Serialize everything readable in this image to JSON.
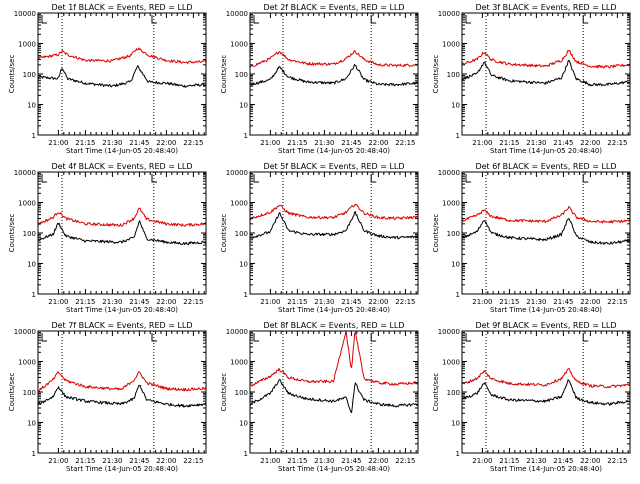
{
  "x_tick_labels": [
    "21:00",
    "21:15",
    "21:30",
    "21:45",
    "22:00",
    "22:15"
  ],
  "y_tick_labels": [
    "1",
    "10",
    "100",
    "1000",
    "10000"
  ],
  "ylabel": "Counts/sec",
  "xlabel": "Start Time (14-Jun-05 20:48:40)",
  "colors": {
    "events": "#000000",
    "lld": "#dd0000",
    "frame": "#000000"
  },
  "chart_data": [
    {
      "type": "line",
      "title": "Det 1f BLACK = Events, RED = LLD",
      "yscale": "log",
      "ylim": [
        1,
        10000
      ],
      "xlim": [
        "20:48:40",
        "22:22:00"
      ],
      "dotted_x": [
        "21:02",
        "21:53"
      ],
      "flag_x": "21:52",
      "series": [
        {
          "name": "Events",
          "x": [
            "20:49",
            "21:00",
            "21:02",
            "21:05",
            "21:15",
            "21:30",
            "21:40",
            "21:44",
            "21:50",
            "22:00",
            "22:10",
            "22:21"
          ],
          "y": [
            80,
            70,
            170,
            70,
            50,
            40,
            55,
            180,
            55,
            50,
            40,
            45
          ]
        },
        {
          "name": "LLD",
          "x": [
            "20:49",
            "21:00",
            "21:02",
            "21:05",
            "21:15",
            "21:30",
            "21:40",
            "21:44",
            "21:50",
            "22:00",
            "22:10",
            "22:21"
          ],
          "y": [
            330,
            430,
            560,
            430,
            280,
            270,
            400,
            700,
            420,
            280,
            240,
            250
          ]
        }
      ]
    },
    {
      "type": "line",
      "title": "Det 2f BLACK = Events, RED = LLD",
      "yscale": "log",
      "ylim": [
        1,
        10000
      ],
      "xlim": [
        "20:48:40",
        "22:22:00"
      ],
      "dotted_x": [
        "21:07",
        "21:56"
      ],
      "flag_x": "21:56",
      "series": [
        {
          "name": "Events",
          "x": [
            "20:49",
            "21:00",
            "21:05",
            "21:10",
            "21:20",
            "21:35",
            "21:42",
            "21:47",
            "21:52",
            "22:00",
            "22:10",
            "22:21"
          ],
          "y": [
            45,
            65,
            170,
            80,
            55,
            50,
            70,
            200,
            65,
            45,
            45,
            50
          ]
        },
        {
          "name": "LLD",
          "x": [
            "20:49",
            "21:00",
            "21:05",
            "21:10",
            "21:20",
            "21:35",
            "21:42",
            "21:47",
            "21:52",
            "22:00",
            "22:10",
            "22:21"
          ],
          "y": [
            170,
            320,
            560,
            300,
            220,
            210,
            320,
            560,
            300,
            200,
            190,
            200
          ]
        }
      ]
    },
    {
      "type": "line",
      "title": "Det 3f BLACK = Events, RED = LLD",
      "yscale": "log",
      "ylim": [
        1,
        10000
      ],
      "xlim": [
        "20:48:40",
        "22:22:00"
      ],
      "dotted_x": [
        "21:02",
        "21:56"
      ],
      "flag_x": "21:56",
      "series": [
        {
          "name": "Events",
          "x": [
            "20:49",
            "20:57",
            "21:01",
            "21:05",
            "21:15",
            "21:35",
            "21:44",
            "21:48",
            "21:52",
            "22:00",
            "22:10",
            "22:21"
          ],
          "y": [
            70,
            100,
            250,
            90,
            60,
            50,
            75,
            280,
            70,
            45,
            45,
            55
          ]
        },
        {
          "name": "LLD",
          "x": [
            "20:49",
            "20:57",
            "21:01",
            "21:05",
            "21:15",
            "21:35",
            "21:44",
            "21:48",
            "21:52",
            "22:00",
            "22:10",
            "22:21"
          ],
          "y": [
            210,
            300,
            520,
            290,
            210,
            180,
            280,
            600,
            260,
            180,
            170,
            200
          ]
        }
      ]
    },
    {
      "type": "line",
      "title": "Det 4f BLACK = Events, RED = LLD",
      "yscale": "log",
      "ylim": [
        1,
        10000
      ],
      "xlim": [
        "20:48:40",
        "22:22:00"
      ],
      "dotted_x": [
        "21:02",
        "21:53"
      ],
      "flag_x": "21:52",
      "series": [
        {
          "name": "Events",
          "x": [
            "20:49",
            "20:57",
            "21:00",
            "21:04",
            "21:15",
            "21:35",
            "21:42",
            "21:45",
            "21:49",
            "22:00",
            "22:10",
            "22:21"
          ],
          "y": [
            60,
            90,
            220,
            80,
            55,
            50,
            70,
            250,
            65,
            50,
            45,
            50
          ]
        },
        {
          "name": "LLD",
          "x": [
            "20:49",
            "20:57",
            "21:00",
            "21:04",
            "21:15",
            "21:35",
            "21:42",
            "21:45",
            "21:49",
            "22:00",
            "22:10",
            "22:21"
          ],
          "y": [
            200,
            320,
            500,
            300,
            200,
            180,
            300,
            650,
            280,
            200,
            180,
            200
          ]
        }
      ]
    },
    {
      "type": "line",
      "title": "Det 5f BLACK = Events, RED = LLD",
      "yscale": "log",
      "ylim": [
        1,
        10000
      ],
      "xlim": [
        "20:48:40",
        "22:22:00"
      ],
      "dotted_x": [
        "21:07",
        "21:56"
      ],
      "flag_x": "21:56",
      "series": [
        {
          "name": "Events",
          "x": [
            "20:49",
            "21:00",
            "21:05",
            "21:10",
            "21:20",
            "21:35",
            "21:42",
            "21:47",
            "21:52",
            "22:00",
            "22:10",
            "22:21"
          ],
          "y": [
            70,
            110,
            460,
            120,
            90,
            90,
            120,
            480,
            120,
            80,
            70,
            75
          ]
        },
        {
          "name": "LLD",
          "x": [
            "20:49",
            "21:00",
            "21:05",
            "21:10",
            "21:20",
            "21:35",
            "21:42",
            "21:47",
            "21:52",
            "22:00",
            "22:10",
            "22:21"
          ],
          "y": [
            300,
            480,
            820,
            450,
            330,
            320,
            470,
            900,
            450,
            320,
            300,
            330
          ]
        }
      ]
    },
    {
      "type": "line",
      "title": "Det 6f BLACK = Events, RED = LLD",
      "yscale": "log",
      "ylim": [
        1,
        10000
      ],
      "xlim": [
        "20:48:40",
        "22:22:00"
      ],
      "dotted_x": [
        "21:02",
        "21:56"
      ],
      "flag_x": "21:56",
      "series": [
        {
          "name": "Events",
          "x": [
            "20:49",
            "20:57",
            "21:01",
            "21:05",
            "21:15",
            "21:35",
            "21:44",
            "21:48",
            "21:52",
            "22:00",
            "22:10",
            "22:21"
          ],
          "y": [
            70,
            110,
            280,
            100,
            70,
            60,
            90,
            330,
            80,
            50,
            45,
            55
          ]
        },
        {
          "name": "LLD",
          "x": [
            "20:49",
            "20:57",
            "21:01",
            "21:05",
            "21:15",
            "21:35",
            "21:44",
            "21:48",
            "21:52",
            "22:00",
            "22:10",
            "22:21"
          ],
          "y": [
            250,
            380,
            560,
            350,
            260,
            240,
            380,
            700,
            330,
            240,
            230,
            250
          ]
        }
      ]
    },
    {
      "type": "line",
      "title": "Det 7f BLACK = Events, RED = LLD",
      "yscale": "log",
      "ylim": [
        1,
        10000
      ],
      "xlim": [
        "20:48:40",
        "22:22:00"
      ],
      "dotted_x": [
        "21:02",
        "21:53"
      ],
      "flag_x": "21:52",
      "series": [
        {
          "name": "Events",
          "x": [
            "20:49",
            "20:57",
            "21:00",
            "21:04",
            "21:15",
            "21:35",
            "21:42",
            "21:45",
            "21:49",
            "22:00",
            "22:10",
            "22:21"
          ],
          "y": [
            40,
            70,
            150,
            70,
            50,
            40,
            60,
            180,
            55,
            40,
            35,
            40
          ]
        },
        {
          "name": "LLD",
          "x": [
            "20:49",
            "20:57",
            "21:00",
            "21:04",
            "21:15",
            "21:35",
            "21:42",
            "21:45",
            "21:49",
            "22:00",
            "22:10",
            "22:21"
          ],
          "y": [
            110,
            250,
            450,
            240,
            150,
            120,
            250,
            450,
            200,
            130,
            120,
            130
          ]
        }
      ]
    },
    {
      "type": "line",
      "title": "Det 8f BLACK = Events, RED = LLD",
      "yscale": "log",
      "ylim": [
        1,
        10000
      ],
      "xlim": [
        "20:48:40",
        "22:22:00"
      ],
      "dotted_x": [
        "21:07",
        "21:56"
      ],
      "flag_x": "21:56",
      "series": [
        {
          "name": "Events",
          "x": [
            "20:49",
            "21:00",
            "21:05",
            "21:10",
            "21:20",
            "21:35",
            "21:42",
            "21:45",
            "21:47",
            "21:52",
            "22:00",
            "22:10",
            "22:21"
          ],
          "y": [
            40,
            90,
            250,
            90,
            60,
            50,
            65,
            20,
            200,
            55,
            40,
            35,
            40
          ]
        },
        {
          "name": "LLD",
          "x": [
            "20:49",
            "21:00",
            "21:05",
            "21:10",
            "21:20",
            "21:35",
            "21:42",
            "21:45",
            "21:47",
            "21:52",
            "22:00",
            "22:10",
            "22:21"
          ],
          "y": [
            160,
            330,
            560,
            300,
            220,
            220,
            10000,
            500,
            10000,
            280,
            200,
            180,
            200
          ]
        }
      ]
    },
    {
      "type": "line",
      "title": "Det 9f BLACK = Events, RED = LLD",
      "yscale": "log",
      "ylim": [
        1,
        10000
      ],
      "xlim": [
        "20:48:40",
        "22:22:00"
      ],
      "dotted_x": [
        "21:02",
        "21:56"
      ],
      "flag_x": "21:56",
      "series": [
        {
          "name": "Events",
          "x": [
            "20:49",
            "20:57",
            "21:01",
            "21:05",
            "21:15",
            "21:35",
            "21:44",
            "21:48",
            "21:52",
            "22:00",
            "22:10",
            "22:21"
          ],
          "y": [
            60,
            90,
            200,
            80,
            55,
            50,
            70,
            260,
            65,
            45,
            40,
            50
          ]
        },
        {
          "name": "LLD",
          "x": [
            "20:49",
            "20:57",
            "21:01",
            "21:05",
            "21:15",
            "21:35",
            "21:44",
            "21:48",
            "21:52",
            "22:00",
            "22:10",
            "22:21"
          ],
          "y": [
            180,
            280,
            480,
            270,
            190,
            170,
            280,
            560,
            230,
            160,
            150,
            170
          ]
        }
      ]
    }
  ]
}
